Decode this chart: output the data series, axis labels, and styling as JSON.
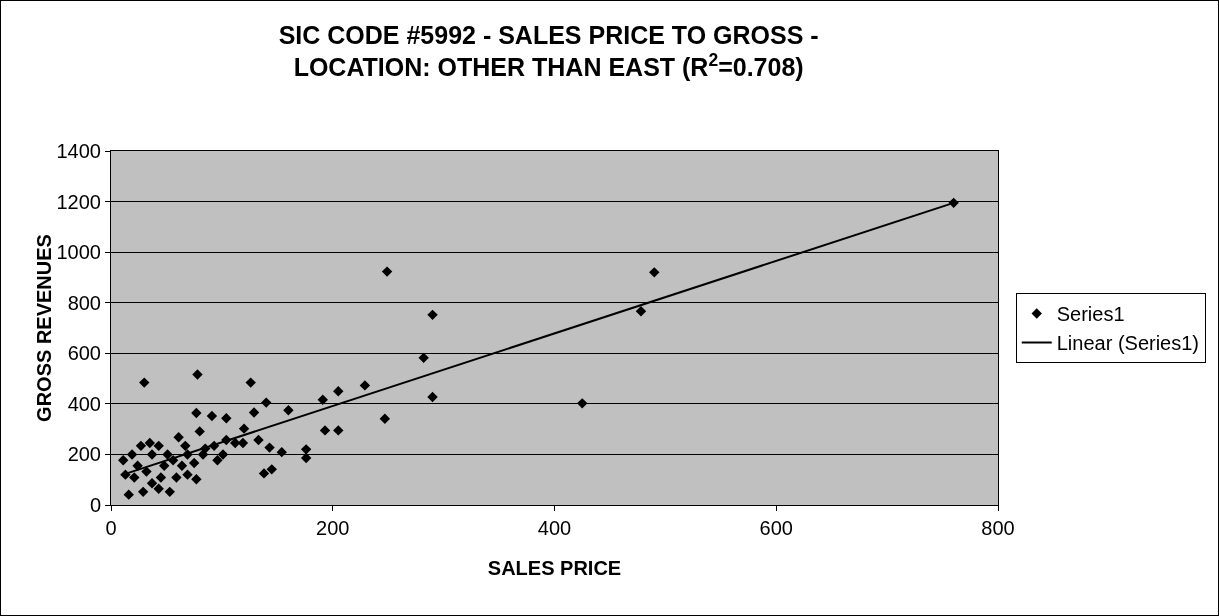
{
  "chart_data": {
    "type": "scatter",
    "title": "SIC CODE #5992 - SALES PRICE TO GROSS - LOCATION: OTHER THAN EAST (R$^{2}$=0.708)",
    "xlabel": "SALES PRICE",
    "ylabel": "GROSS REVENUES",
    "xlim": [
      0,
      800
    ],
    "xticks": [
      0,
      200,
      400,
      600,
      800
    ],
    "ylim": [
      0,
      1400
    ],
    "yticks": [
      0,
      200,
      400,
      600,
      800,
      1000,
      1200,
      1400
    ],
    "grid": "y",
    "legend": "right",
    "series": [
      {
        "name": "Series1",
        "color": "#000000",
        "marker": "diamond",
        "x": [
          760,
          249,
          490,
          290,
          478,
          282,
          290,
          425,
          247,
          30,
          78,
          126,
          140,
          160,
          191,
          205,
          229,
          193,
          205,
          176,
          176,
          154,
          143,
          138,
          145,
          129,
          104,
          77,
          91,
          120,
          133,
          119,
          77,
          104,
          11,
          16,
          27,
          21,
          43,
          53,
          61,
          69,
          48,
          37,
          85,
          96,
          13,
          32,
          59,
          75,
          93,
          112,
          43,
          29,
          67,
          80,
          24,
          51,
          37,
          64,
          83,
          19,
          45,
          56,
          35,
          101,
          69
        ],
        "values": [
          1195,
          923,
          920,
          752,
          766,
          582,
          427,
          402,
          341,
          484,
          516,
          484,
          405,
          375,
          416,
          450,
          473,
          295,
          295,
          220,
          186,
          209,
          227,
          125,
          141,
          366,
          343,
          364,
          352,
          302,
          257,
          245,
          102,
          257,
          177,
          41,
          234,
          109,
          64,
          52,
          268,
          200,
          155,
          200,
          223,
          177,
          120,
          132,
          109,
          166,
          234,
          245,
          234,
          52,
          234,
          291,
          155,
          200,
          86,
          155,
          200,
          200,
          109,
          177,
          245,
          200,
          120
        ]
      },
      {
        "name": "Linear (Series1)",
        "color": "#000000",
        "type": "line",
        "marker": "none",
        "x": [
          15,
          760
        ],
        "values": [
          126,
          1195
        ]
      }
    ]
  }
}
